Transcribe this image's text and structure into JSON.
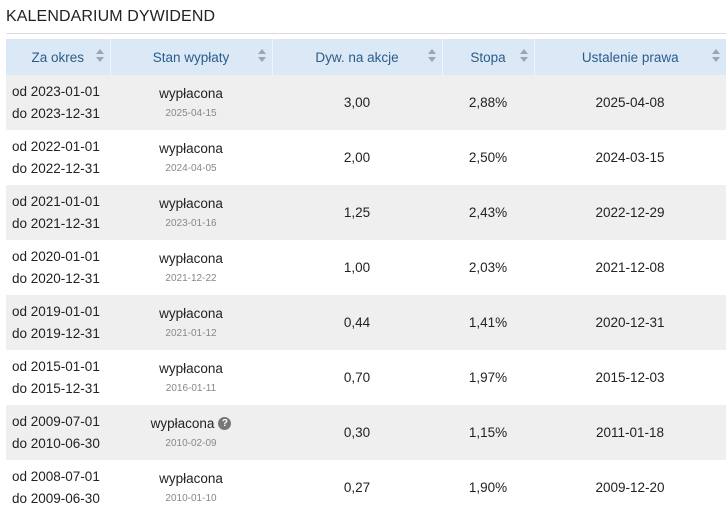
{
  "title": "KALENDARIUM DYWIDEND",
  "columns": [
    "Za okres",
    "Stan wypłaty",
    "Dyw. na akcje",
    "Stopa",
    "Ustalenie prawa"
  ],
  "rows": [
    {
      "from": "od 2023-01-01",
      "to": "do 2023-12-31",
      "status": "wypłacona",
      "status_date": "2025-04-15",
      "dividend": "3,00",
      "rate": "2,88%",
      "record_date": "2025-04-08",
      "help": false
    },
    {
      "from": "od 2022-01-01",
      "to": "do 2022-12-31",
      "status": "wypłacona",
      "status_date": "2024-04-05",
      "dividend": "2,00",
      "rate": "2,50%",
      "record_date": "2024-03-15",
      "help": false
    },
    {
      "from": "od 2021-01-01",
      "to": "do 2021-12-31",
      "status": "wypłacona",
      "status_date": "2023-01-16",
      "dividend": "1,25",
      "rate": "2,43%",
      "record_date": "2022-12-29",
      "help": false
    },
    {
      "from": "od 2020-01-01",
      "to": "do 2020-12-31",
      "status": "wypłacona",
      "status_date": "2021-12-22",
      "dividend": "1,00",
      "rate": "2,03%",
      "record_date": "2021-12-08",
      "help": false
    },
    {
      "from": "od 2019-01-01",
      "to": "do 2019-12-31",
      "status": "wypłacona",
      "status_date": "2021-01-12",
      "dividend": "0,44",
      "rate": "1,41%",
      "record_date": "2020-12-31",
      "help": false
    },
    {
      "from": "od 2015-01-01",
      "to": "do 2015-12-31",
      "status": "wypłacona",
      "status_date": "2016-01-11",
      "dividend": "0,70",
      "rate": "1,97%",
      "record_date": "2015-12-03",
      "help": false
    },
    {
      "from": "od 2009-07-01",
      "to": "do 2010-06-30",
      "status": "wypłacona",
      "status_date": "2010-02-09",
      "dividend": "0,30",
      "rate": "1,15%",
      "record_date": "2011-01-18",
      "help": true
    },
    {
      "from": "od 2008-07-01",
      "to": "do 2009-06-30",
      "status": "wypłacona",
      "status_date": "2010-01-10",
      "dividend": "0,27",
      "rate": "1,90%",
      "record_date": "2009-12-20",
      "help": false
    }
  ],
  "help_icon": {
    "icon": "question-circle-icon",
    "glyph": "?"
  },
  "colors": {
    "header_bg": "#dbe9f6",
    "header_text": "#2c5c8a",
    "row_alt": "#efefef"
  }
}
